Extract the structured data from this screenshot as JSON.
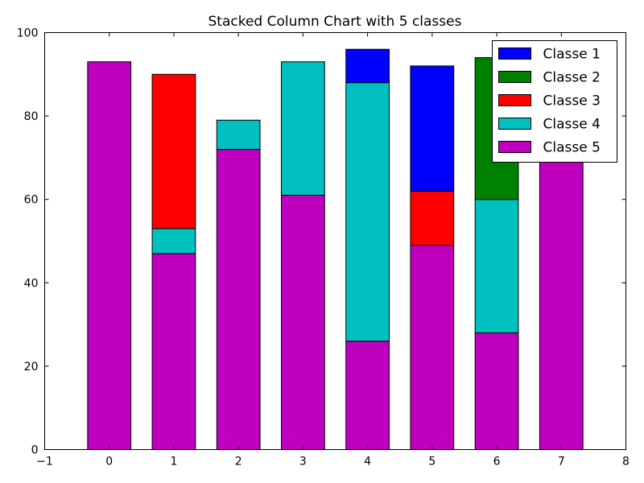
{
  "chart_data": {
    "type": "bar",
    "stacked": true,
    "title": "Stacked Column Chart with 5 classes",
    "xlabel": "",
    "ylabel": "",
    "xlim": [
      -1,
      8
    ],
    "ylim": [
      0,
      100
    ],
    "x_ticks": [
      "−1",
      "0",
      "1",
      "2",
      "3",
      "4",
      "5",
      "6",
      "7",
      "8"
    ],
    "y_ticks": [
      "0",
      "20",
      "40",
      "60",
      "80",
      "100"
    ],
    "categories": [
      0,
      1,
      2,
      3,
      4,
      5,
      6,
      7
    ],
    "grid": false,
    "legend_position": "top-right",
    "series": [
      {
        "name": "Classe 5",
        "color": "#bf00bf",
        "values": [
          93,
          47,
          72,
          61,
          26,
          49,
          28,
          70
        ]
      },
      {
        "name": "Classe 4",
        "color": "#00bfbf",
        "values": [
          0,
          6,
          7,
          32,
          62,
          0,
          32,
          0
        ]
      },
      {
        "name": "Classe 3",
        "color": "#ff0000",
        "values": [
          0,
          37,
          0,
          0,
          0,
          13,
          0,
          0
        ]
      },
      {
        "name": "Classe 2",
        "color": "#008000",
        "values": [
          0,
          0,
          0,
          0,
          0,
          0,
          34,
          0
        ]
      },
      {
        "name": "Classe 1",
        "color": "#0000ff",
        "values": [
          0,
          0,
          0,
          0,
          8,
          30,
          0,
          0
        ]
      }
    ],
    "legend_order": [
      "Classe 1",
      "Classe 2",
      "Classe 3",
      "Classe 4",
      "Classe 5"
    ]
  }
}
